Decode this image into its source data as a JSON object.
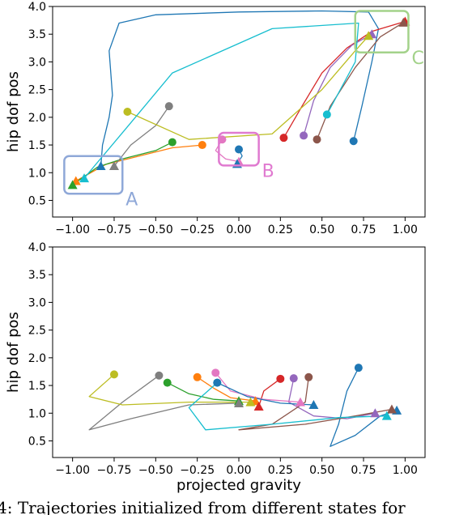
{
  "caption": "4: Trajectories initialized from different states for",
  "chart_data": [
    {
      "type": "line",
      "xlabel": "",
      "ylabel": "hip dof pos",
      "xlim": [
        -1.12,
        1.12
      ],
      "ylim": [
        0.2,
        4.0
      ],
      "xticks": [
        "−1.00",
        "−0.75",
        "−0.50",
        "−0.25",
        "0.00",
        "0.25",
        "0.50",
        "0.75",
        "1.00"
      ],
      "yticks": [
        "0.5",
        "1.0",
        "1.5",
        "2.0",
        "2.5",
        "3.0",
        "3.5",
        "4.0"
      ],
      "boxes": [
        {
          "label": "A",
          "x0": -1.05,
          "x1": -0.7,
          "y0": 0.62,
          "y1": 1.3,
          "color": "#8fa8d8"
        },
        {
          "label": "B",
          "x0": -0.12,
          "x1": 0.12,
          "y0": 1.13,
          "y1": 1.72,
          "color": "#e07ad0"
        },
        {
          "label": "C",
          "x0": 0.7,
          "x1": 1.02,
          "y0": 3.17,
          "y1": 3.92,
          "color": "#a3d28a"
        }
      ],
      "series": [
        {
          "color": "#1f77b4",
          "start": [
            0.69,
            1.57
          ],
          "end": [
            -0.83,
            1.12
          ],
          "points": [
            [
              0.69,
              1.57
            ],
            [
              0.74,
              2.2
            ],
            [
              0.8,
              3.0
            ],
            [
              0.84,
              3.6
            ],
            [
              0.78,
              3.9
            ],
            [
              0.5,
              3.92
            ],
            [
              0.0,
              3.9
            ],
            [
              -0.5,
              3.85
            ],
            [
              -0.72,
              3.7
            ],
            [
              -0.78,
              3.2
            ],
            [
              -0.76,
              2.4
            ],
            [
              -0.78,
              2.0
            ],
            [
              -0.82,
              1.5
            ],
            [
              -0.83,
              1.12
            ]
          ]
        },
        {
          "color": "#ff7f0e",
          "start": [
            -0.22,
            1.5
          ],
          "end": [
            -0.98,
            0.85
          ],
          "points": [
            [
              -0.22,
              1.5
            ],
            [
              -0.4,
              1.45
            ],
            [
              -0.6,
              1.3
            ],
            [
              -0.8,
              1.15
            ],
            [
              -0.98,
              0.85
            ]
          ]
        },
        {
          "color": "#2ca02c",
          "start": [
            -0.4,
            1.55
          ],
          "end": [
            -1.0,
            0.78
          ],
          "points": [
            [
              -0.4,
              1.55
            ],
            [
              -0.5,
              1.4
            ],
            [
              -0.7,
              1.25
            ],
            [
              -0.85,
              1.1
            ],
            [
              -1.0,
              0.78
            ]
          ]
        },
        {
          "color": "#d62728",
          "start": [
            0.27,
            1.63
          ],
          "end": [
            1.0,
            3.73
          ],
          "points": [
            [
              0.27,
              1.63
            ],
            [
              0.38,
              2.2
            ],
            [
              0.5,
              2.8
            ],
            [
              0.65,
              3.25
            ],
            [
              0.8,
              3.55
            ],
            [
              1.0,
              3.73
            ]
          ]
        },
        {
          "color": "#9467bd",
          "start": [
            0.39,
            1.67
          ],
          "end": [
            0.8,
            3.5
          ],
          "points": [
            [
              0.39,
              1.67
            ],
            [
              0.45,
              2.3
            ],
            [
              0.55,
              2.9
            ],
            [
              0.68,
              3.3
            ],
            [
              0.8,
              3.5
            ]
          ]
        },
        {
          "color": "#8c564b",
          "start": [
            0.47,
            1.6
          ],
          "end": [
            0.99,
            3.71
          ],
          "points": [
            [
              0.47,
              1.6
            ],
            [
              0.55,
              2.2
            ],
            [
              0.7,
              2.9
            ],
            [
              0.85,
              3.45
            ],
            [
              0.99,
              3.71
            ]
          ]
        },
        {
          "color": "#e377c2",
          "start": [
            -0.1,
            1.6
          ],
          "end": [
            0.0,
            1.2
          ],
          "points": [
            [
              -0.1,
              1.6
            ],
            [
              -0.14,
              1.4
            ],
            [
              -0.08,
              1.25
            ],
            [
              0.0,
              1.2
            ]
          ]
        },
        {
          "color": "#7f7f7f",
          "start": [
            -0.42,
            2.2
          ],
          "end": [
            -0.75,
            1.12
          ],
          "points": [
            [
              -0.42,
              2.2
            ],
            [
              -0.5,
              1.85
            ],
            [
              -0.65,
              1.5
            ],
            [
              -0.75,
              1.12
            ]
          ]
        },
        {
          "color": "#bcbd22",
          "start": [
            -0.67,
            2.1
          ],
          "end": [
            0.78,
            3.47
          ],
          "points": [
            [
              -0.67,
              2.1
            ],
            [
              -0.3,
              1.6
            ],
            [
              0.2,
              1.7
            ],
            [
              0.5,
              2.5
            ],
            [
              0.7,
              3.2
            ],
            [
              0.78,
              3.47
            ]
          ]
        },
        {
          "color": "#17becf",
          "start": [
            0.53,
            2.05
          ],
          "end": [
            -0.93,
            0.9
          ],
          "points": [
            [
              0.53,
              2.05
            ],
            [
              0.7,
              3.0
            ],
            [
              0.72,
              3.7
            ],
            [
              0.2,
              3.6
            ],
            [
              -0.4,
              2.8
            ],
            [
              -0.65,
              1.9
            ],
            [
              -0.93,
              0.9
            ]
          ]
        },
        {
          "color": "#1f77b4",
          "start": [
            0.0,
            1.42
          ],
          "end": [
            -0.01,
            1.16
          ],
          "points": [
            [
              0.0,
              1.42
            ],
            [
              0.02,
              1.3
            ],
            [
              -0.01,
              1.16
            ]
          ]
        }
      ]
    },
    {
      "type": "line",
      "xlabel": "projected gravity",
      "ylabel": "hip dof pos",
      "xlim": [
        -1.12,
        1.12
      ],
      "ylim": [
        0.2,
        4.0
      ],
      "xticks": [
        "−1.00",
        "−0.75",
        "−0.50",
        "−0.25",
        "0.00",
        "0.25",
        "0.50",
        "0.75",
        "1.00"
      ],
      "yticks": [
        "0.5",
        "1.0",
        "1.5",
        "2.0",
        "2.5",
        "3.0",
        "3.5",
        "4.0"
      ],
      "series": [
        {
          "color": "#1f77b4",
          "start": [
            0.72,
            1.82
          ],
          "end": [
            0.95,
            1.05
          ],
          "points": [
            [
              0.72,
              1.82
            ],
            [
              0.65,
              1.4
            ],
            [
              0.6,
              0.8
            ],
            [
              0.55,
              0.4
            ],
            [
              0.7,
              0.6
            ],
            [
              0.85,
              0.95
            ],
            [
              0.95,
              1.05
            ]
          ]
        },
        {
          "color": "#ff7f0e",
          "start": [
            -0.25,
            1.65
          ],
          "end": [
            0.1,
            1.22
          ],
          "points": [
            [
              -0.25,
              1.65
            ],
            [
              -0.15,
              1.45
            ],
            [
              -0.05,
              1.28
            ],
            [
              0.1,
              1.22
            ]
          ]
        },
        {
          "color": "#2ca02c",
          "start": [
            -0.43,
            1.55
          ],
          "end": [
            0.0,
            1.22
          ],
          "points": [
            [
              -0.43,
              1.55
            ],
            [
              -0.3,
              1.35
            ],
            [
              -0.15,
              1.25
            ],
            [
              0.0,
              1.22
            ]
          ]
        },
        {
          "color": "#d62728",
          "start": [
            0.25,
            1.62
          ],
          "end": [
            0.12,
            1.12
          ],
          "points": [
            [
              0.25,
              1.62
            ],
            [
              0.15,
              1.4
            ],
            [
              0.12,
              1.12
            ]
          ]
        },
        {
          "color": "#9467bd",
          "start": [
            0.33,
            1.63
          ],
          "end": [
            0.82,
            1.0
          ],
          "points": [
            [
              0.33,
              1.63
            ],
            [
              0.3,
              1.2
            ],
            [
              0.45,
              0.95
            ],
            [
              0.65,
              0.9
            ],
            [
              0.82,
              1.0
            ]
          ]
        },
        {
          "color": "#8c564b",
          "start": [
            0.42,
            1.65
          ],
          "end": [
            0.92,
            1.07
          ],
          "points": [
            [
              0.42,
              1.65
            ],
            [
              0.4,
              1.2
            ],
            [
              0.2,
              0.8
            ],
            [
              0.0,
              0.7
            ],
            [
              0.4,
              0.8
            ],
            [
              0.7,
              0.95
            ],
            [
              0.92,
              1.07
            ]
          ]
        },
        {
          "color": "#e377c2",
          "start": [
            -0.14,
            1.73
          ],
          "end": [
            0.37,
            1.2
          ],
          "points": [
            [
              -0.14,
              1.73
            ],
            [
              -0.05,
              1.4
            ],
            [
              0.15,
              1.25
            ],
            [
              0.37,
              1.2
            ]
          ]
        },
        {
          "color": "#7f7f7f",
          "start": [
            -0.48,
            1.68
          ],
          "end": [
            0.0,
            1.18
          ],
          "points": [
            [
              -0.48,
              1.68
            ],
            [
              -0.7,
              1.2
            ],
            [
              -0.9,
              0.7
            ],
            [
              -0.65,
              0.9
            ],
            [
              -0.3,
              1.15
            ],
            [
              0.0,
              1.18
            ]
          ]
        },
        {
          "color": "#bcbd22",
          "start": [
            -0.75,
            1.7
          ],
          "end": [
            0.07,
            1.2
          ],
          "points": [
            [
              -0.75,
              1.7
            ],
            [
              -0.9,
              1.3
            ],
            [
              -0.7,
              1.15
            ],
            [
              -0.3,
              1.2
            ],
            [
              0.07,
              1.2
            ]
          ]
        },
        {
          "color": "#17becf",
          "start": [
            -0.13,
            1.55
          ],
          "end": [
            0.89,
            0.95
          ],
          "points": [
            [
              -0.13,
              1.55
            ],
            [
              -0.3,
              1.1
            ],
            [
              -0.2,
              0.7
            ],
            [
              0.2,
              0.8
            ],
            [
              0.6,
              0.92
            ],
            [
              0.89,
              0.95
            ]
          ]
        },
        {
          "color": "#1f77b4",
          "start": [
            -0.13,
            1.55
          ],
          "end": [
            0.45,
            1.15
          ],
          "points": [
            [
              -0.13,
              1.55
            ],
            [
              0.05,
              1.3
            ],
            [
              0.25,
              1.18
            ],
            [
              0.45,
              1.15
            ]
          ]
        }
      ]
    }
  ]
}
